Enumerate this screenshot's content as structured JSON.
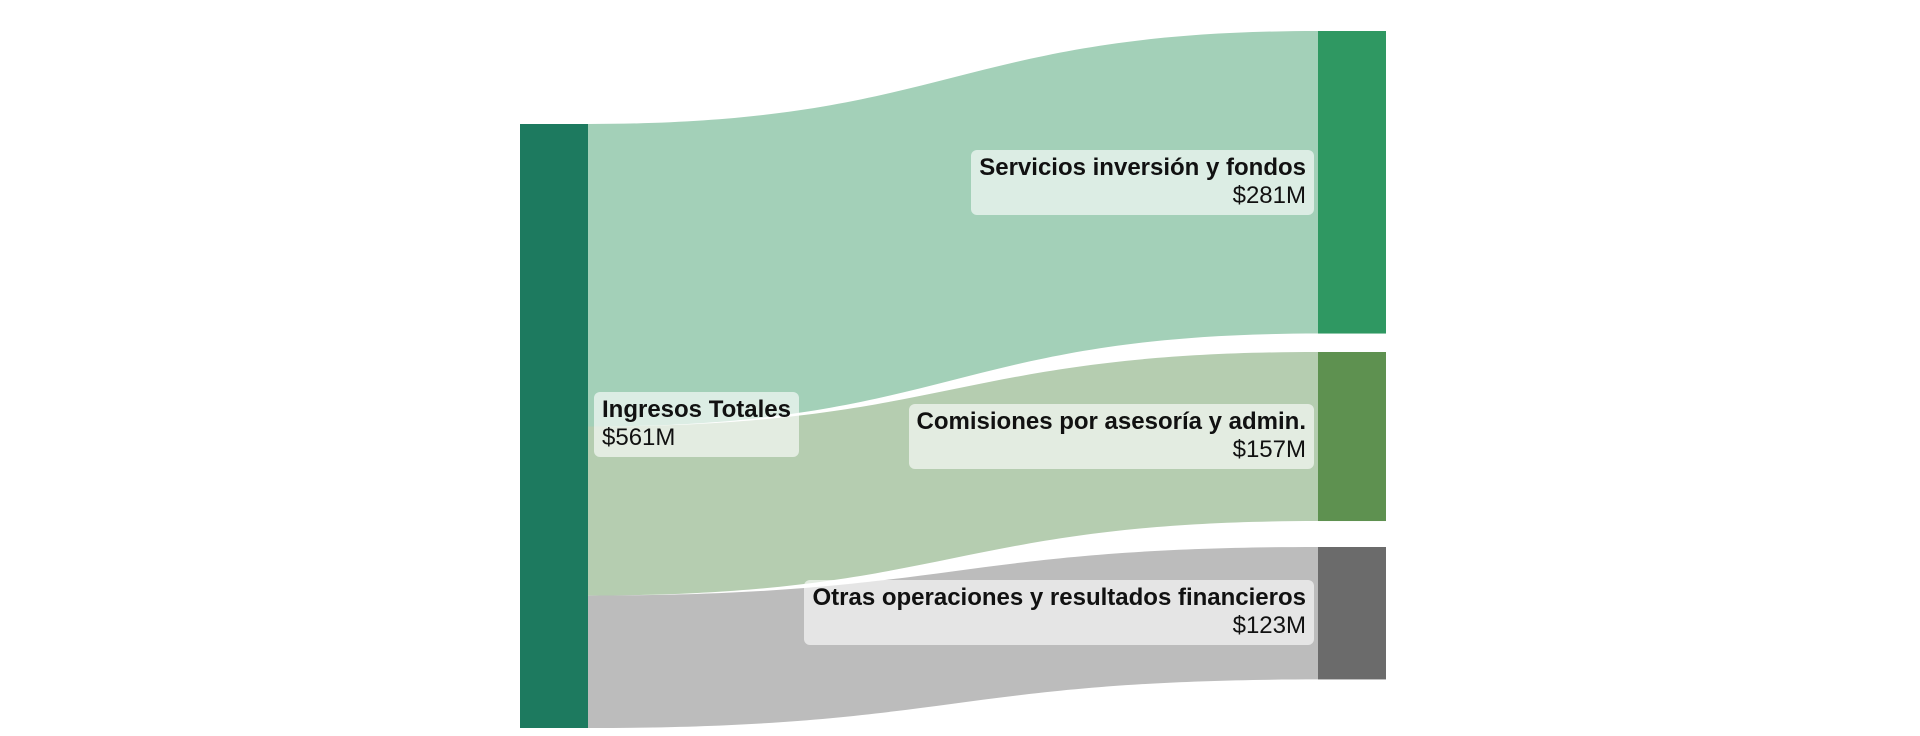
{
  "chart_data": {
    "type": "sankey",
    "nodes": [
      {
        "id": "total",
        "name": "Ingresos Totales",
        "value_label": "$561M",
        "value": 561,
        "color": "#1d7a5f"
      },
      {
        "id": "servicios",
        "name": "Servicios inversión y fondos",
        "value_label": "$281M",
        "value": 281,
        "color": "#2f9862"
      },
      {
        "id": "comisiones",
        "name": "Comisiones por asesoría y admin.",
        "value_label": "$157M",
        "value": 157,
        "color": "#5e9150"
      },
      {
        "id": "otras",
        "name": "Otras operaciones y resultados financieros",
        "value_label": "$123M",
        "value": 123,
        "color": "#6b6b6b"
      }
    ],
    "links": [
      {
        "source": "total",
        "target": "servicios",
        "value": 281,
        "color": "#a3d0b8"
      },
      {
        "source": "total",
        "target": "comisiones",
        "value": 157,
        "color": "#b5cdb0"
      },
      {
        "source": "total",
        "target": "otras",
        "value": 123,
        "color": "#bcbcbc"
      }
    ]
  }
}
